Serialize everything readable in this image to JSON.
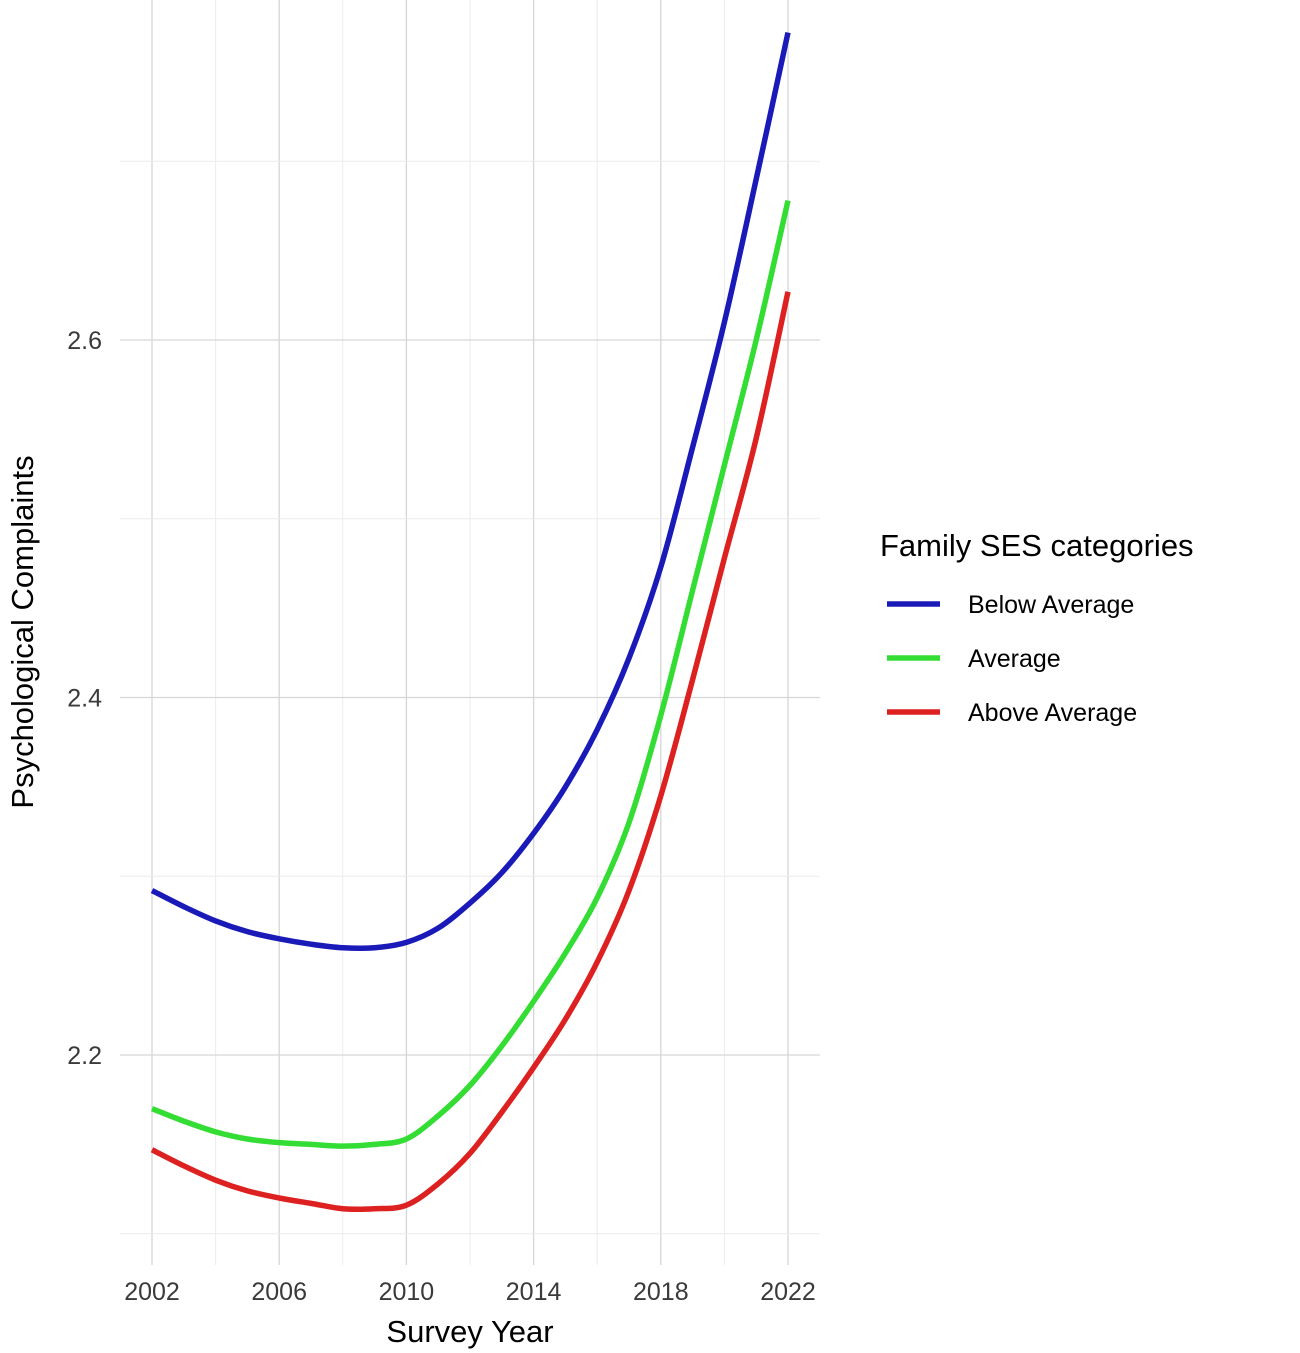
{
  "chart_data": {
    "type": "line",
    "title": "",
    "xlabel": "Survey Year",
    "ylabel": "Psychological Complaints",
    "xlim": [
      2002,
      2022
    ],
    "ylim": [
      2.1,
      2.78
    ],
    "xticks": [
      "2002",
      "2006",
      "2010",
      "2014",
      "2018",
      "2022"
    ],
    "yticks": [
      "2.2",
      "2.4",
      "2.6"
    ],
    "grid": true,
    "legend": {
      "title": "Family SES categories",
      "placement": "right"
    },
    "x": [
      2002,
      2003,
      2004,
      2005,
      2006,
      2007,
      2008,
      2009,
      2010,
      2011,
      2012,
      2013,
      2014,
      2015,
      2016,
      2017,
      2018,
      2019,
      2020,
      2021,
      2022
    ],
    "series": [
      {
        "name": "Below Average",
        "color": "#1a1ab8",
        "values": [
          2.292,
          2.283,
          2.275,
          2.269,
          2.265,
          2.262,
          2.26,
          2.26,
          2.263,
          2.271,
          2.285,
          2.302,
          2.324,
          2.35,
          2.382,
          2.422,
          2.473,
          2.54,
          2.61,
          2.69,
          2.772
        ]
      },
      {
        "name": "Average",
        "color": "#33dd33",
        "values": [
          2.17,
          2.163,
          2.157,
          2.153,
          2.151,
          2.15,
          2.149,
          2.15,
          2.153,
          2.166,
          2.183,
          2.205,
          2.23,
          2.257,
          2.288,
          2.33,
          2.39,
          2.46,
          2.53,
          2.6,
          2.678
        ]
      },
      {
        "name": "Above Average",
        "color": "#dd2020",
        "values": [
          2.147,
          2.138,
          2.13,
          2.124,
          2.12,
          2.117,
          2.114,
          2.114,
          2.116,
          2.128,
          2.145,
          2.168,
          2.193,
          2.22,
          2.252,
          2.292,
          2.345,
          2.41,
          2.478,
          2.545,
          2.627
        ]
      }
    ]
  }
}
